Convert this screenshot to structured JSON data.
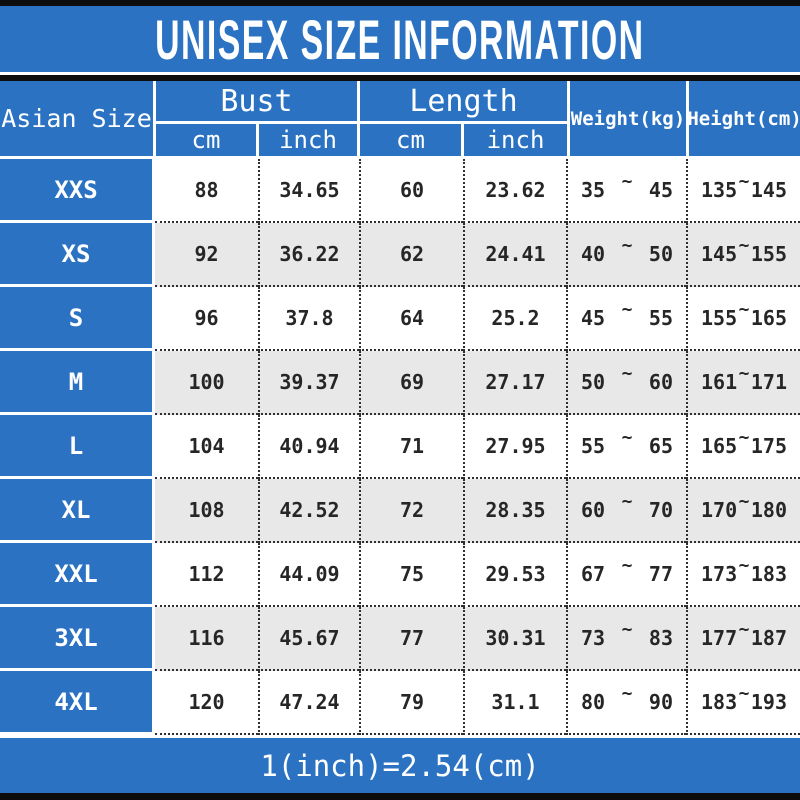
{
  "title": "UNISEX SIZE INFORMATION",
  "footer": {
    "conversion_note": "1(inch)=2.54(cm)"
  },
  "colors": {
    "accent_blue": "#2b73c2",
    "row_alt_gray": "#e8e8e8",
    "bar_black": "#0d0d0d",
    "cell_text": "#262626",
    "header_text": "#ffffff"
  },
  "table": {
    "corner_label": "Asian Size",
    "tilde": "~",
    "groups": [
      {
        "label": "Bust",
        "sub": [
          "cm",
          "inch"
        ]
      },
      {
        "label": "Length",
        "sub": [
          "cm",
          "inch"
        ]
      }
    ],
    "single_columns": [
      "Weight(kg)",
      "Height(cm)"
    ],
    "rows": [
      {
        "size": "XXS",
        "bust_cm": "88",
        "bust_inch": "34.65",
        "length_cm": "60",
        "length_inch": "23.62",
        "weight_min": "35",
        "weight_max": "45",
        "height_min": "135",
        "height_max": "145"
      },
      {
        "size": "XS",
        "bust_cm": "92",
        "bust_inch": "36.22",
        "length_cm": "62",
        "length_inch": "24.41",
        "weight_min": "40",
        "weight_max": "50",
        "height_min": "145",
        "height_max": "155"
      },
      {
        "size": "S",
        "bust_cm": "96",
        "bust_inch": "37.8",
        "length_cm": "64",
        "length_inch": "25.2",
        "weight_min": "45",
        "weight_max": "55",
        "height_min": "155",
        "height_max": "165"
      },
      {
        "size": "M",
        "bust_cm": "100",
        "bust_inch": "39.37",
        "length_cm": "69",
        "length_inch": "27.17",
        "weight_min": "50",
        "weight_max": "60",
        "height_min": "161",
        "height_max": "171"
      },
      {
        "size": "L",
        "bust_cm": "104",
        "bust_inch": "40.94",
        "length_cm": "71",
        "length_inch": "27.95",
        "weight_min": "55",
        "weight_max": "65",
        "height_min": "165",
        "height_max": "175"
      },
      {
        "size": "XL",
        "bust_cm": "108",
        "bust_inch": "42.52",
        "length_cm": "72",
        "length_inch": "28.35",
        "weight_min": "60",
        "weight_max": "70",
        "height_min": "170",
        "height_max": "180"
      },
      {
        "size": "XXL",
        "bust_cm": "112",
        "bust_inch": "44.09",
        "length_cm": "75",
        "length_inch": "29.53",
        "weight_min": "67",
        "weight_max": "77",
        "height_min": "173",
        "height_max": "183"
      },
      {
        "size": "3XL",
        "bust_cm": "116",
        "bust_inch": "45.67",
        "length_cm": "77",
        "length_inch": "30.31",
        "weight_min": "73",
        "weight_max": "83",
        "height_min": "177",
        "height_max": "187"
      },
      {
        "size": "4XL",
        "bust_cm": "120",
        "bust_inch": "47.24",
        "length_cm": "79",
        "length_inch": "31.1",
        "weight_min": "80",
        "weight_max": "90",
        "height_min": "183",
        "height_max": "193"
      }
    ]
  },
  "chart_data": {
    "type": "table",
    "title": "UNISEX SIZE INFORMATION",
    "columns": [
      "Asian Size",
      "Bust cm",
      "Bust inch",
      "Length cm",
      "Length inch",
      "Weight(kg)",
      "Height(cm)"
    ],
    "rows": [
      [
        "XXS",
        88,
        34.65,
        60,
        23.62,
        "35~45",
        "135~145"
      ],
      [
        "XS",
        92,
        36.22,
        62,
        24.41,
        "40~50",
        "145~155"
      ],
      [
        "S",
        96,
        37.8,
        64,
        25.2,
        "45~55",
        "155~165"
      ],
      [
        "M",
        100,
        39.37,
        69,
        27.17,
        "50~60",
        "161~171"
      ],
      [
        "L",
        104,
        40.94,
        71,
        27.95,
        "55~65",
        "165~175"
      ],
      [
        "XL",
        108,
        42.52,
        72,
        28.35,
        "60~70",
        "170~180"
      ],
      [
        "XXL",
        112,
        44.09,
        75,
        29.53,
        "67~77",
        "173~183"
      ],
      [
        "3XL",
        116,
        45.67,
        77,
        30.31,
        "73~83",
        "177~187"
      ],
      [
        "4XL",
        120,
        47.24,
        79,
        31.1,
        "80~90",
        "183~193"
      ]
    ],
    "note": "1(inch)=2.54(cm)"
  }
}
